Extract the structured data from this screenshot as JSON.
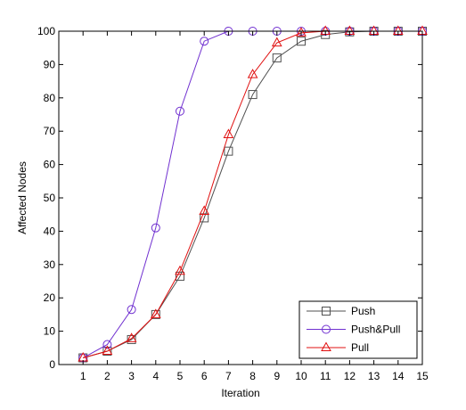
{
  "chart_data": {
    "type": "line",
    "title": "",
    "xlabel": "Iteration",
    "ylabel": "Affected Nodes",
    "xlim": [
      0,
      15
    ],
    "ylim": [
      0,
      100
    ],
    "x": [
      1,
      2,
      3,
      4,
      5,
      6,
      7,
      8,
      9,
      10,
      11,
      12,
      13,
      14,
      15
    ],
    "xticks": [
      "1",
      "2",
      "3",
      "4",
      "5",
      "6",
      "7",
      "8",
      "9",
      "10",
      "11",
      "12",
      "13",
      "14",
      "15"
    ],
    "yticks": [
      "0",
      "10",
      "20",
      "30",
      "40",
      "50",
      "60",
      "70",
      "80",
      "90",
      "100"
    ],
    "grid": false,
    "legend_position": "bottom-right",
    "series": [
      {
        "name": "Push",
        "color": "#505050",
        "marker": "square",
        "values": [
          2,
          4,
          7.5,
          15,
          26.5,
          44,
          64,
          81,
          92,
          97,
          99,
          99.8,
          100,
          100,
          100
        ]
      },
      {
        "name": "Push&Pull",
        "color": "#7030d0",
        "marker": "circle",
        "values": [
          2,
          6,
          16.5,
          41,
          76,
          97,
          100,
          100,
          100,
          100,
          100,
          100,
          100,
          100,
          100
        ]
      },
      {
        "name": "Pull",
        "color": "#e01010",
        "marker": "triangle",
        "values": [
          2,
          4,
          7.8,
          15,
          28,
          46,
          69,
          87,
          96.5,
          99.5,
          100,
          100,
          100,
          100,
          100
        ]
      }
    ]
  }
}
